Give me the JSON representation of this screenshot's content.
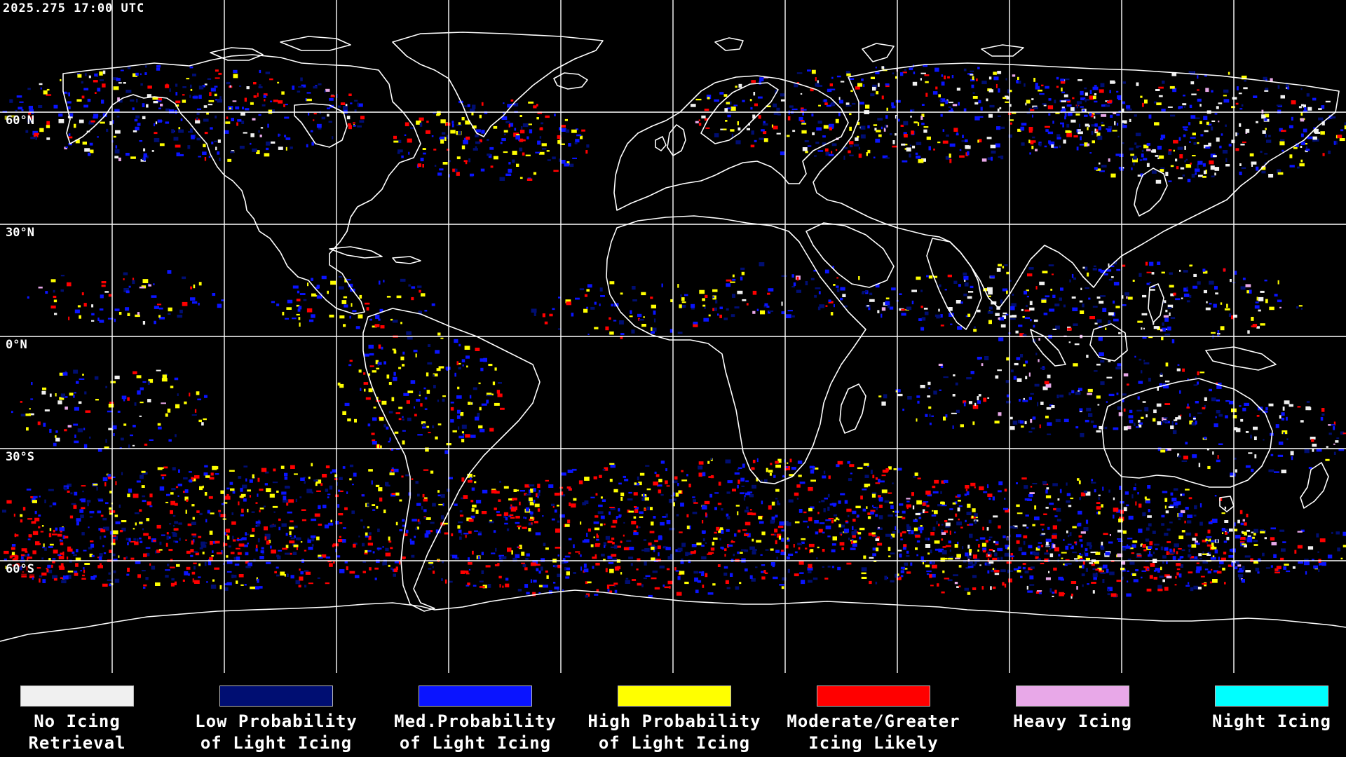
{
  "timestamp": "2025.275 17:00 UTC",
  "lat_labels": [
    "60°N",
    "30°N",
    "0°N",
    "30°S",
    "60°S"
  ],
  "colors": {
    "no_icing": "#f0f0f0",
    "low": "#000e72",
    "med": "#0a14ff",
    "high": "#ffff00",
    "moderate": "#ff0000",
    "heavy": "#e8a8e8",
    "night": "#00ffff",
    "coast": "#ffffff",
    "grid": "#ffffff"
  },
  "legend": [
    {
      "line1": "No Icing",
      "line2": "Retrieval",
      "color": "#f0f0f0"
    },
    {
      "line1": "Low Probability",
      "line2": "of Light Icing",
      "color": "#000e72"
    },
    {
      "line1": "Med.Probability",
      "line2": "of Light Icing",
      "color": "#0a14ff"
    },
    {
      "line1": "High Probability",
      "line2": "of Light Icing",
      "color": "#ffff00"
    },
    {
      "line1": "Moderate/Greater",
      "line2": "Icing Likely",
      "color": "#ff0000"
    },
    {
      "line1": "Heavy Icing",
      "line2": "",
      "color": "#e8a8e8"
    },
    {
      "line1": "Night Icing",
      "line2": "",
      "color": "#00ffff"
    }
  ]
}
